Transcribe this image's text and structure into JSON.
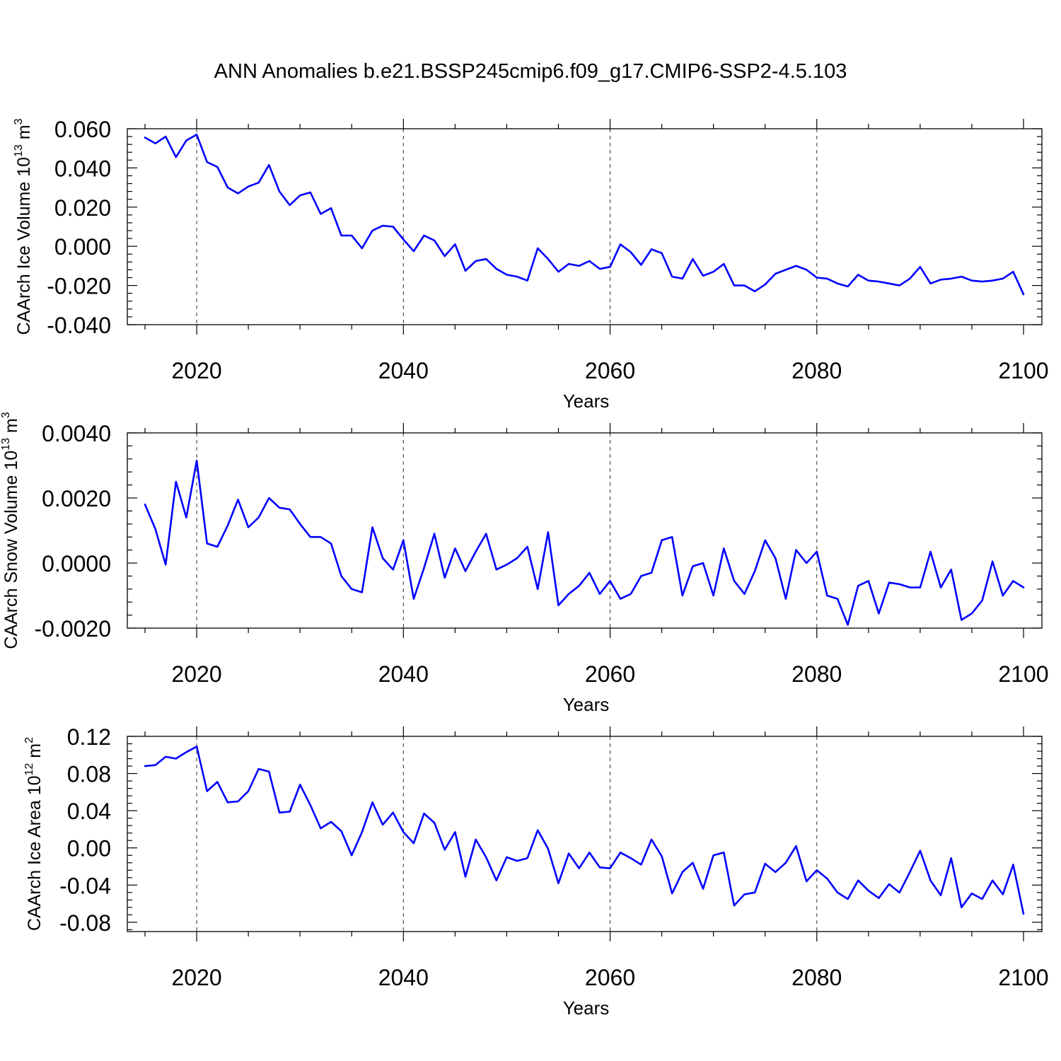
{
  "title": "ANN Anomalies b.e21.BSSP245cmip6.f09_g17.CMIP6-SSP2-4.5.103",
  "line_color": "#0000ff",
  "chart_data": [
    {
      "type": "line",
      "ylabel_main": "CAArch Ice Volume 10",
      "ylabel_exp": "13",
      "ylabel_unit": " m",
      "ylabel_unit_exp": "3",
      "xlabel": "Years",
      "xlim": [
        2015,
        2100
      ],
      "ylim": [
        -0.04,
        0.06
      ],
      "yticks": [
        -0.04,
        -0.02,
        0.0,
        0.02,
        0.04,
        0.06
      ],
      "ytick_labels": [
        "-0.040",
        "-0.020",
        "0.000",
        "0.020",
        "0.040",
        "0.060"
      ],
      "xticks": [
        2020,
        2040,
        2060,
        2080,
        2100
      ],
      "xtick_labels": [
        "2020",
        "2040",
        "2060",
        "2080",
        "2100"
      ],
      "grid": "vertical dashed at major x ticks",
      "x_start": 2015,
      "values": [
        0.0555,
        0.0525,
        0.056,
        0.0455,
        0.054,
        0.057,
        0.043,
        0.0405,
        0.03,
        0.027,
        0.0305,
        0.0325,
        0.0415,
        0.028,
        0.021,
        0.026,
        0.0275,
        0.0165,
        0.0195,
        0.0055,
        0.0055,
        -0.001,
        0.008,
        0.0105,
        0.01,
        0.0035,
        -0.0025,
        0.0055,
        0.003,
        -0.005,
        0.001,
        -0.0125,
        -0.0075,
        -0.0065,
        -0.0115,
        -0.0145,
        -0.0155,
        -0.0175,
        -0.001,
        -0.0065,
        -0.013,
        -0.009,
        -0.01,
        -0.0075,
        -0.0115,
        -0.0105,
        0.001,
        -0.003,
        -0.0095,
        -0.0015,
        -0.0035,
        -0.0155,
        -0.0165,
        -0.0065,
        -0.015,
        -0.013,
        -0.009,
        -0.02,
        -0.02,
        -0.023,
        -0.0195,
        -0.014,
        -0.012,
        -0.01,
        -0.012,
        -0.016,
        -0.0165,
        -0.019,
        -0.0205,
        -0.0145,
        -0.0175,
        -0.018,
        -0.019,
        -0.02,
        -0.0165,
        -0.0105,
        -0.019,
        -0.017,
        -0.0165,
        -0.0155,
        -0.0175,
        -0.018,
        -0.0175,
        -0.0165,
        -0.013,
        -0.0245
      ]
    },
    {
      "type": "line",
      "ylabel_main": "CAArch Snow Volume 10",
      "ylabel_exp": "13",
      "ylabel_unit": " m",
      "ylabel_unit_exp": "3",
      "xlabel": "Years",
      "xlim": [
        2015,
        2100
      ],
      "ylim": [
        -0.002,
        0.004
      ],
      "yticks": [
        -0.002,
        0.0,
        0.002,
        0.004
      ],
      "ytick_labels": [
        "-0.0020",
        "0.0000",
        "0.0020",
        "0.0040"
      ],
      "xticks": [
        2020,
        2040,
        2060,
        2080,
        2100
      ],
      "xtick_labels": [
        "2020",
        "2040",
        "2060",
        "2080",
        "2100"
      ],
      "grid": "vertical dashed at major x ticks",
      "x_start": 2015,
      "values": [
        0.0018,
        0.00105,
        -5e-05,
        0.0025,
        0.0014,
        0.00315,
        0.0006,
        0.0005,
        0.00115,
        0.00195,
        0.0011,
        0.0014,
        0.002,
        0.0017,
        0.00165,
        0.0012,
        0.0008,
        0.0008,
        0.0006,
        -0.0004,
        -0.0008,
        -0.0009,
        0.0011,
        0.00015,
        -0.0002,
        0.0007,
        -0.0011,
        -0.00015,
        0.0009,
        -0.00045,
        0.00045,
        -0.00025,
        0.00035,
        0.0009,
        -0.0002,
        -5e-05,
        0.00015,
        0.0005,
        -0.0008,
        0.00095,
        -0.0013,
        -0.00095,
        -0.0007,
        -0.0003,
        -0.00095,
        -0.00055,
        -0.0011,
        -0.00095,
        -0.0004,
        -0.0003,
        0.0007,
        0.0008,
        -0.001,
        -0.0001,
        0.0,
        -0.001,
        0.00045,
        -0.00055,
        -0.00095,
        -0.00025,
        0.0007,
        0.00015,
        -0.0011,
        0.0004,
        0.0,
        0.00035,
        -0.001,
        -0.0011,
        -0.0019,
        -0.0007,
        -0.00055,
        -0.00155,
        -0.0006,
        -0.00065,
        -0.00075,
        -0.00075,
        0.00035,
        -0.00075,
        -0.0002,
        -0.00175,
        -0.00155,
        -0.00115,
        5e-05,
        -0.001,
        -0.00055,
        -0.00075
      ]
    },
    {
      "type": "line",
      "ylabel_main": "CAArch Ice Area 10",
      "ylabel_exp": "12",
      "ylabel_unit": " m",
      "ylabel_unit_exp": "2",
      "xlabel": "Years",
      "xlim": [
        2015,
        2100
      ],
      "ylim": [
        -0.09,
        0.12
      ],
      "yticks": [
        -0.08,
        -0.04,
        0.0,
        0.04,
        0.08,
        0.12
      ],
      "ytick_labels": [
        "-0.08",
        "-0.04",
        "0.00",
        "0.04",
        "0.08",
        "0.12"
      ],
      "xticks": [
        2020,
        2040,
        2060,
        2080,
        2100
      ],
      "xtick_labels": [
        "2020",
        "2040",
        "2060",
        "2080",
        "2100"
      ],
      "grid": "vertical dashed at major x ticks",
      "x_start": 2015,
      "values": [
        0.088,
        0.089,
        0.098,
        0.096,
        0.103,
        0.109,
        0.061,
        0.071,
        0.049,
        0.05,
        0.061,
        0.085,
        0.082,
        0.038,
        0.039,
        0.068,
        0.046,
        0.021,
        0.028,
        0.018,
        -0.008,
        0.017,
        0.049,
        0.025,
        0.038,
        0.017,
        0.005,
        0.037,
        0.027,
        -0.002,
        0.017,
        -0.031,
        0.009,
        -0.01,
        -0.035,
        -0.01,
        -0.014,
        -0.011,
        0.019,
        -0.001,
        -0.038,
        -0.006,
        -0.022,
        -0.005,
        -0.021,
        -0.022,
        -0.005,
        -0.011,
        -0.018,
        0.009,
        -0.009,
        -0.049,
        -0.026,
        -0.016,
        -0.044,
        -0.008,
        -0.005,
        -0.062,
        -0.05,
        -0.048,
        -0.017,
        -0.026,
        -0.016,
        0.002,
        -0.036,
        -0.024,
        -0.033,
        -0.048,
        -0.055,
        -0.035,
        -0.046,
        -0.054,
        -0.039,
        -0.048,
        -0.026,
        -0.003,
        -0.035,
        -0.051,
        -0.011,
        -0.064,
        -0.049,
        -0.055,
        -0.035,
        -0.05,
        -0.018,
        -0.071
      ]
    }
  ]
}
